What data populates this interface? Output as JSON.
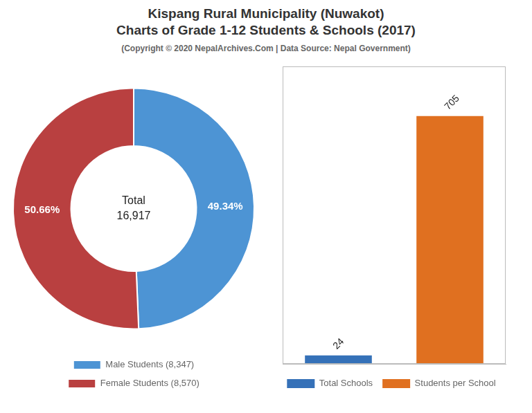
{
  "title": "Kispang Rural Municipality (Nuwakot)",
  "subtitle": "Charts of Grade 1-12 Students & Schools (2017)",
  "annotations": [
    "(Copyright © 2020 NepalArchives.Com | Data Source: Nepal Government)"
  ],
  "chart_data": [
    {
      "type": "doughnut",
      "categories": [
        "Male Students (8,347)",
        "Female Students (8,570)"
      ],
      "values": [
        49.34,
        50.66
      ],
      "value_labels": [
        "49.34%",
        "50.66%"
      ],
      "colors": [
        "#4d94d4",
        "#b94040"
      ],
      "data_labels": true,
      "annotations": [
        "Total",
        "16,917"
      ],
      "legend": "bottom"
    },
    {
      "type": "bar",
      "categories": [
        null,
        null
      ],
      "series": [
        {
          "name": "Total Schools",
          "color": "#3571b8",
          "values": [
            24,
            null
          ]
        },
        {
          "name": "Students per School",
          "color": "#e07020",
          "values": [
            null,
            705
          ]
        }
      ],
      "ylim": [
        0,
        846
      ],
      "tick_labels": false,
      "grid": false,
      "data_labels": true,
      "legend": "bottom"
    }
  ]
}
